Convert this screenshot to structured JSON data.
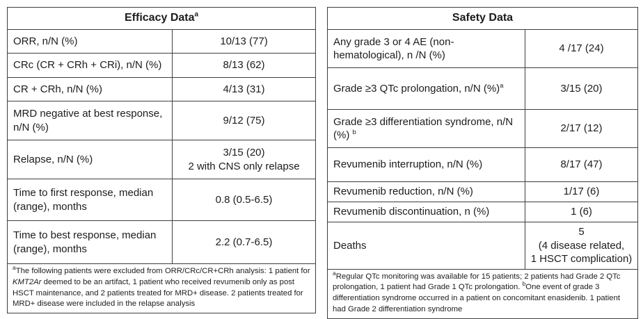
{
  "efficacy": {
    "title": "Efficacy Data",
    "title_sup": "a",
    "rows": [
      {
        "label": "ORR, n/N (%)",
        "value": "10/13 (77)"
      },
      {
        "label": "CRc (CR + CRh + CRi), n/N (%)",
        "value": "8/13 (62)"
      },
      {
        "label": "CR + CRh, n/N (%)",
        "value": "4/13 (31)"
      },
      {
        "label": "MRD negative at best response, n/N (%)",
        "value": "9/12 (75)"
      },
      {
        "label": "Relapse, n/N (%)",
        "value": "3/15 (20)",
        "value2": "2 with CNS only relapse"
      },
      {
        "label": "Time to first response, median (range), months",
        "value": "0.8 (0.5-6.5)"
      },
      {
        "label": "Time to best response, median (range), months",
        "value": "2.2 (0.7-6.5)"
      }
    ],
    "footnote": {
      "marker": "a",
      "text1": "The following patients were excluded from ORR/CRc/CR+CRh analysis: 1 patient for ",
      "italic": "KMT2Ar",
      "text2": " deemed to be an artifact, 1 patient who received revumenib only as post HSCT maintenance, and 2 patients treated for MRD+ disease. 2 patients treated for MRD+ disease were included in the relapse analysis"
    }
  },
  "safety": {
    "title": "Safety Data",
    "rows": [
      {
        "label": "Any grade 3 or 4 AE (non-hematological), n /N (%)",
        "label_sup": "",
        "value": "4 /17 (24)"
      },
      {
        "label": "Grade ≥3 QTc prolongation, n/N (%)",
        "label_sup": "a",
        "value": "3/15 (20)"
      },
      {
        "label": "Grade ≥3 differentiation syndrome, n/N (%) ",
        "label_sup": "b",
        "value": "2/17 (12)"
      },
      {
        "label": "Revumenib interruption, n/N (%)",
        "label_sup": "",
        "value": "8/17 (47)"
      },
      {
        "label": "Revumenib reduction, n/N (%)",
        "label_sup": "",
        "value": "1/17 (6)"
      },
      {
        "label": "Revumenib discontinuation, n (%)",
        "label_sup": "",
        "value": "1 (6)"
      },
      {
        "label": "Deaths",
        "label_sup": "",
        "value": "5",
        "value2": "(4 disease related,",
        "value3": "1 HSCT complication)"
      }
    ],
    "footnote": {
      "marker_a": "a",
      "text_a": "Regular QTc monitoring was available for 15 patients; 2 patients had Grade 2 QTc prolongation, 1 patient had Grade 1 QTc prolongation. ",
      "marker_b": "b",
      "text_b": "One event of grade 3 differentiation syndrome occurred in a patient on concomitant enasidenib. 1 patient had Grade 2 differentiation syndrome"
    }
  }
}
